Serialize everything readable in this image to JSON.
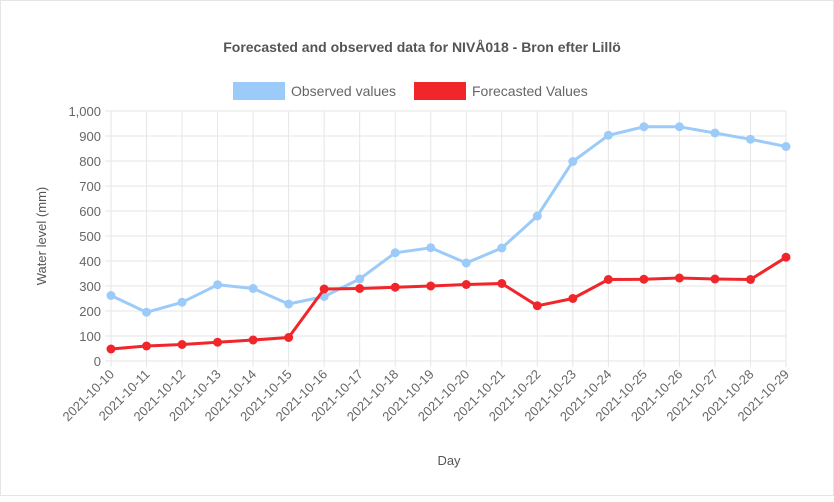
{
  "chart_data": {
    "type": "line",
    "title": "Forecasted and observed data for NIVÅ018 - Bron efter Lillö",
    "xlabel": "Day",
    "ylabel": "Water level (mm)",
    "ylim": [
      0,
      1000
    ],
    "ytick_step": 100,
    "grid": true,
    "legend_position": "top",
    "categories": [
      "2021-10-10",
      "2021-10-11",
      "2021-10-12",
      "2021-10-13",
      "2021-10-14",
      "2021-10-15",
      "2021-10-16",
      "2021-10-17",
      "2021-10-18",
      "2021-10-19",
      "2021-10-20",
      "2021-10-21",
      "2021-10-22",
      "2021-10-23",
      "2021-10-24",
      "2021-10-25",
      "2021-10-26",
      "2021-10-27",
      "2021-10-28",
      "2021-10-29"
    ],
    "series": [
      {
        "name": "Observed values",
        "color": "#9ccbf9",
        "values": [
          262,
          195,
          235,
          305,
          290,
          228,
          258,
          328,
          433,
          453,
          392,
          452,
          580,
          798,
          903,
          937,
          937,
          912,
          887,
          858
        ]
      },
      {
        "name": "Forecasted Values",
        "color": "#f0262b",
        "values": [
          48,
          60,
          66,
          75,
          84,
          94,
          288,
          290,
          295,
          300,
          306,
          310,
          221,
          250,
          326,
          327,
          332,
          328,
          326,
          415
        ]
      }
    ]
  }
}
